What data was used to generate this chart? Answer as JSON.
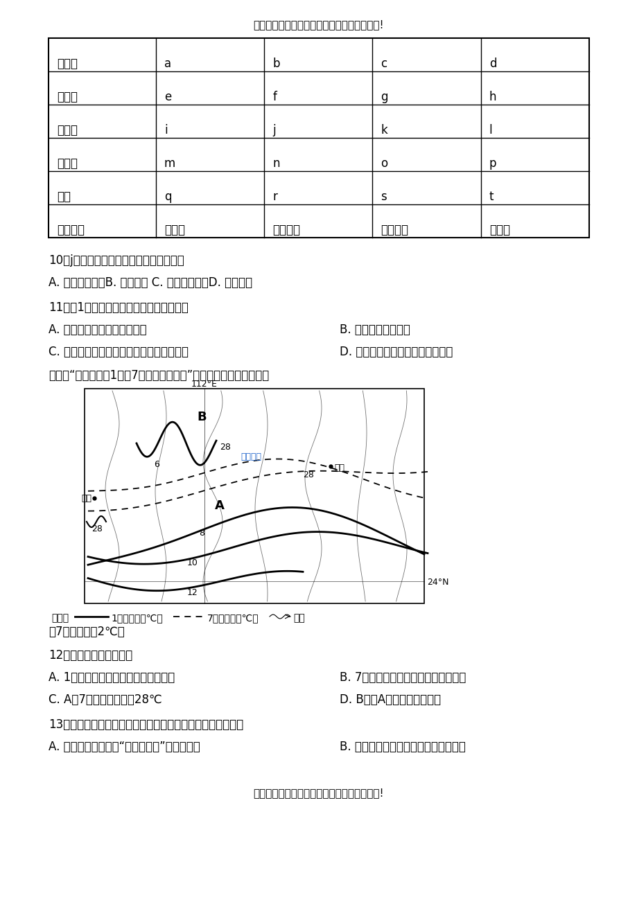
{
  "bg_color": "#ffffff",
  "header_text": "欢迎阅读本文档，希望本文档能对您有所帮助!",
  "footer_text": "欢迎阅读本文档，希望本文档能对您有所帮助!",
  "table_col0": [
    "寒温带",
    "中温带",
    "暖温带",
    "亚热带",
    "热带",
    "干湿地区"
  ],
  "table_col1": [
    "a",
    "e",
    "i",
    "m",
    "q",
    "湿润区"
  ],
  "table_col2": [
    "b",
    "f",
    "j",
    "n",
    "r",
    "半湿润区"
  ],
  "table_col3": [
    "c",
    "g",
    "k",
    "o",
    "s",
    "半干旱区"
  ],
  "table_col4": [
    "d",
    "h",
    "l",
    "p",
    "t",
    "干旱区"
  ],
  "q10": "10．j气候类型主要分布在我国的　（　）",
  "q10_opts": "A. 华北地区　　B. 华南地区 C. 西北地区　　D. 青藏地区",
  "q11": "11．对1气候区的描述，正确的是　（　）",
  "q11_optA": "A. 该区河流仅有冰川融水补给",
  "q11_optB": "B. 该区主要位于高原",
  "q11_optC": "C. 影响该区的气象灾害主要有沙尘暴和地震",
  "q11_optD": "D. 绿洲农业是该区重要的农业特色",
  "intro": "下图为“我国某区块1月和7月等温线分布图”。读图，回答下列各题。",
  "map_note_prefix": "图例：",
  "map_note_jan": "1月等温线（℃）",
  "map_note_jul": "7月等温线（℃）",
  "map_note_river": "河流",
  "temp_note": "（7月等温距为2℃）",
  "q12": "12．图示区域（　　）。",
  "q12_optA": "A. 1月等温线分布主要受地形地势影响",
  "q12_optB": "B. 7月等温线分布主要受海陆位置影响",
  "q12_optC": "C. A剴7月平均气温高于28℃",
  "q12_optD": "D. B处比A处的气温年较差大",
  "q13": "13．关于图示区域地理环境特征的叙述，正确的是（　　）。",
  "q13_optA": "A. 区域内能够欣赏到“一山有四季”的奇妙景观",
  "q13_optB": "B. 区域内南部河流一般在每年春季开始",
  "label_112E": "112°E",
  "label_24N": "24°N",
  "label_B": "B",
  "label_A": "A",
  "label_ganzhou": "赣州",
  "label_guilin": "桂林",
  "label_watermark": "正确教育",
  "label_6": "6",
  "label_8": "8",
  "label_10": "10",
  "label_12": "12",
  "label_28a": "28",
  "label_28b": "28",
  "label_28c": "28"
}
